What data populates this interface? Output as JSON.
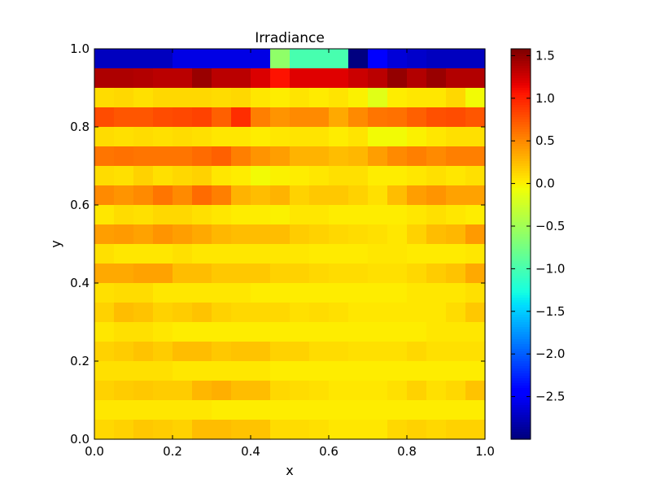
{
  "chart_data": {
    "type": "heatmap",
    "title": "Irradiance",
    "xlabel": "x",
    "ylabel": "y",
    "xlim": [
      0,
      1
    ],
    "ylim": [
      0,
      1
    ],
    "x_ticks": [
      "0.0",
      "0.2",
      "0.4",
      "0.6",
      "0.8",
      "1.0"
    ],
    "y_ticks": [
      "0.0",
      "0.2",
      "0.4",
      "0.6",
      "0.8",
      "1.0"
    ],
    "colorbar": {
      "colormap": "jet",
      "vmin": -3.0,
      "vmax": 1.58,
      "ticks": [
        "1.5",
        "1.0",
        "0.5",
        "0.0",
        "−0.5",
        "−1.0",
        "−1.5",
        "−2.0",
        "−2.5"
      ],
      "tick_values": [
        1.5,
        1.0,
        0.5,
        0.0,
        -0.5,
        -1.0,
        -1.5,
        -2.0,
        -2.5
      ]
    },
    "n_cols": 20,
    "n_rows": 20,
    "grid": false,
    "rows_top_to_bottom": [
      [
        -2.75,
        -2.75,
        -2.75,
        -2.75,
        -2.6,
        -2.6,
        -2.6,
        -2.6,
        -2.6,
        -0.6,
        -1.0,
        -1.0,
        -1.0,
        -3.0,
        -2.45,
        -2.65,
        -2.7,
        -2.75,
        -2.75,
        -2.75
      ],
      [
        1.4,
        1.4,
        1.38,
        1.35,
        1.35,
        1.48,
        1.35,
        1.35,
        1.22,
        1.08,
        1.2,
        1.2,
        1.2,
        1.28,
        1.35,
        1.5,
        1.38,
        1.48,
        1.38,
        1.38
      ],
      [
        0.1,
        0.12,
        0.08,
        0.12,
        0.12,
        0.12,
        0.1,
        0.12,
        0.05,
        0.02,
        0.06,
        0.03,
        0.06,
        0.0,
        -0.15,
        0.02,
        0.05,
        0.05,
        0.12,
        -0.05
      ],
      [
        0.8,
        0.75,
        0.75,
        0.8,
        0.82,
        0.85,
        0.7,
        0.95,
        0.55,
        0.45,
        0.5,
        0.5,
        0.35,
        0.5,
        0.6,
        0.62,
        0.7,
        0.78,
        0.8,
        0.75
      ],
      [
        0.1,
        0.08,
        0.1,
        0.08,
        0.1,
        0.08,
        0.05,
        0.05,
        0.02,
        0.05,
        0.06,
        0.06,
        0.02,
        0.06,
        -0.05,
        -0.05,
        0.0,
        0.05,
        0.08,
        0.08
      ],
      [
        0.6,
        0.62,
        0.6,
        0.6,
        0.6,
        0.65,
        0.7,
        0.55,
        0.45,
        0.4,
        0.3,
        0.3,
        0.25,
        0.28,
        0.4,
        0.5,
        0.55,
        0.5,
        0.55,
        0.55
      ],
      [
        0.1,
        0.08,
        0.15,
        0.08,
        0.12,
        0.15,
        0.05,
        0.02,
        -0.05,
        0.0,
        0.02,
        0.05,
        0.08,
        0.08,
        0.02,
        0.02,
        0.05,
        0.08,
        0.05,
        0.08
      ],
      [
        0.5,
        0.45,
        0.5,
        0.6,
        0.5,
        0.65,
        0.55,
        0.3,
        0.25,
        0.3,
        0.15,
        0.2,
        0.2,
        0.15,
        0.08,
        0.25,
        0.4,
        0.45,
        0.38,
        0.38
      ],
      [
        0.05,
        0.1,
        0.08,
        0.12,
        0.12,
        0.08,
        0.05,
        0.02,
        0.02,
        0.0,
        0.05,
        0.05,
        0.02,
        0.02,
        0.02,
        0.02,
        0.05,
        0.08,
        0.05,
        0.02
      ],
      [
        0.4,
        0.42,
        0.38,
        0.45,
        0.4,
        0.35,
        0.28,
        0.25,
        0.25,
        0.25,
        0.18,
        0.15,
        0.12,
        0.1,
        0.08,
        0.05,
        0.15,
        0.25,
        0.28,
        0.42
      ],
      [
        0.08,
        0.05,
        0.05,
        0.05,
        0.08,
        0.05,
        0.05,
        0.05,
        0.05,
        0.05,
        0.05,
        0.03,
        0.03,
        0.03,
        0.05,
        0.05,
        0.03,
        0.03,
        0.03,
        0.05
      ],
      [
        0.35,
        0.35,
        0.38,
        0.38,
        0.25,
        0.25,
        0.2,
        0.2,
        0.2,
        0.15,
        0.15,
        0.12,
        0.1,
        0.1,
        0.08,
        0.08,
        0.12,
        0.18,
        0.22,
        0.35
      ],
      [
        0.08,
        0.1,
        0.1,
        0.05,
        0.05,
        0.05,
        0.05,
        0.05,
        0.02,
        0.02,
        0.02,
        0.02,
        0.02,
        0.02,
        0.02,
        0.02,
        0.05,
        0.05,
        0.05,
        0.08
      ],
      [
        0.15,
        0.25,
        0.22,
        0.15,
        0.18,
        0.22,
        0.15,
        0.12,
        0.12,
        0.12,
        0.08,
        0.1,
        0.08,
        0.05,
        0.05,
        0.05,
        0.05,
        0.05,
        0.1,
        0.2
      ],
      [
        0.05,
        0.08,
        0.08,
        0.05,
        0.02,
        0.02,
        0.02,
        0.02,
        0.02,
        0.02,
        0.02,
        0.02,
        0.02,
        0.02,
        0.02,
        0.02,
        0.02,
        0.05,
        0.05,
        0.05
      ],
      [
        0.15,
        0.18,
        0.22,
        0.18,
        0.25,
        0.25,
        0.2,
        0.22,
        0.22,
        0.15,
        0.15,
        0.1,
        0.1,
        0.08,
        0.08,
        0.08,
        0.12,
        0.08,
        0.08,
        0.08
      ],
      [
        0.08,
        0.08,
        0.08,
        0.08,
        0.05,
        0.05,
        0.05,
        0.05,
        0.05,
        0.02,
        0.02,
        0.02,
        0.02,
        0.02,
        0.02,
        0.02,
        0.02,
        0.02,
        0.02,
        0.02
      ],
      [
        0.15,
        0.18,
        0.2,
        0.18,
        0.18,
        0.28,
        0.32,
        0.25,
        0.25,
        0.12,
        0.1,
        0.08,
        0.05,
        0.05,
        0.05,
        0.08,
        0.15,
        0.08,
        0.12,
        0.22
      ],
      [
        0.05,
        0.05,
        0.05,
        0.05,
        0.05,
        0.05,
        0.02,
        0.02,
        0.02,
        0.02,
        0.02,
        0.02,
        0.02,
        0.02,
        0.02,
        0.02,
        0.02,
        0.02,
        0.02,
        0.02
      ],
      [
        0.12,
        0.15,
        0.2,
        0.18,
        0.15,
        0.25,
        0.25,
        0.22,
        0.22,
        0.1,
        0.1,
        0.08,
        0.05,
        0.05,
        0.05,
        0.12,
        0.15,
        0.12,
        0.15,
        0.15
      ]
    ]
  }
}
